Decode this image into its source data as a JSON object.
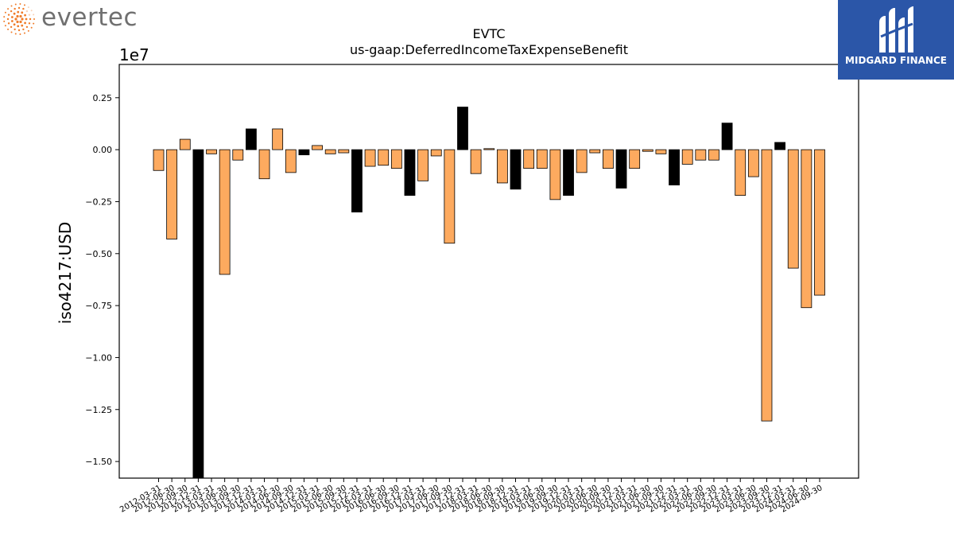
{
  "logos": {
    "left_brand": "evertec",
    "right_brand": "MIDGARD FINANCE"
  },
  "colors": {
    "positive_or_negative_bar": "#fdaa5f",
    "highlight_bar": "#000000",
    "right_logo_bg": "#2b56a8",
    "left_logo_accent": "#f07c2a"
  },
  "chart_data": {
    "type": "bar",
    "title": "EVTC",
    "subtitle": "us-gaap:DeferredIncomeTaxExpenseBenefit",
    "ylabel": "iso4217:USD",
    "xlabel": "",
    "y_scale_label": "1e7",
    "ylim": [
      -1.58,
      0.41
    ],
    "yticks": [
      0.25,
      0.0,
      -0.25,
      -0.5,
      -0.75,
      -1.0,
      -1.25,
      -1.5
    ],
    "ytick_labels": [
      "0.25",
      "0.00",
      "−0.25",
      "−0.50",
      "−0.75",
      "−1.00",
      "−1.25",
      "−1.50"
    ],
    "grid": false,
    "categories": [
      "2012-03-31",
      "2012-06-30",
      "2012-09-30",
      "2012-12-31",
      "2013-03-31",
      "2013-06-30",
      "2013-09-30",
      "2013-12-31",
      "2014-03-31",
      "2014-06-30",
      "2014-09-30",
      "2014-12-31",
      "2015-03-31",
      "2015-06-30",
      "2015-09-30",
      "2015-12-31",
      "2016-03-31",
      "2016-06-30",
      "2016-09-30",
      "2016-12-31",
      "2017-03-31",
      "2017-06-30",
      "2017-09-30",
      "2017-12-31",
      "2018-03-31",
      "2018-06-30",
      "2018-09-30",
      "2018-12-31",
      "2019-03-31",
      "2019-06-30",
      "2019-09-30",
      "2019-12-31",
      "2020-03-31",
      "2020-06-30",
      "2020-09-30",
      "2020-12-31",
      "2021-03-31",
      "2021-06-30",
      "2021-09-30",
      "2021-12-31",
      "2022-03-31",
      "2022-06-30",
      "2022-09-30",
      "2022-12-31",
      "2023-03-31",
      "2023-06-30",
      "2023-09-30",
      "2023-12-31",
      "2024-03-31",
      "2024-06-30",
      "2024-09-30"
    ],
    "series": [
      {
        "values": [
          -0.1,
          -0.43,
          0.05,
          -1.6,
          -0.02,
          -0.6,
          -0.05,
          0.1,
          -0.14,
          0.1,
          -0.11,
          -0.025,
          0.02,
          -0.02,
          -0.015,
          -0.3,
          -0.08,
          -0.075,
          -0.09,
          -0.22,
          -0.15,
          -0.03,
          -0.45,
          0.205,
          -0.115,
          0.005,
          -0.16,
          -0.19,
          -0.09,
          -0.09,
          -0.24,
          -0.22,
          -0.11,
          -0.015,
          -0.09,
          -0.185,
          -0.09,
          -0.008,
          -0.02,
          -0.17,
          -0.07,
          -0.05,
          -0.05,
          0.128,
          -0.22,
          -0.13,
          -1.305,
          0.035,
          -0.57,
          -0.76,
          -0.7
        ],
        "kind": [
          "o",
          "o",
          "o",
          "k",
          "o",
          "o",
          "o",
          "k",
          "o",
          "o",
          "o",
          "k",
          "o",
          "o",
          "o",
          "k",
          "o",
          "o",
          "o",
          "k",
          "o",
          "o",
          "o",
          "k",
          "o",
          "o",
          "o",
          "k",
          "o",
          "o",
          "o",
          "k",
          "o",
          "o",
          "o",
          "k",
          "o",
          "o",
          "o",
          "k",
          "o",
          "o",
          "o",
          "k",
          "o",
          "o",
          "o",
          "k",
          "o",
          "o",
          "o"
        ]
      }
    ]
  }
}
